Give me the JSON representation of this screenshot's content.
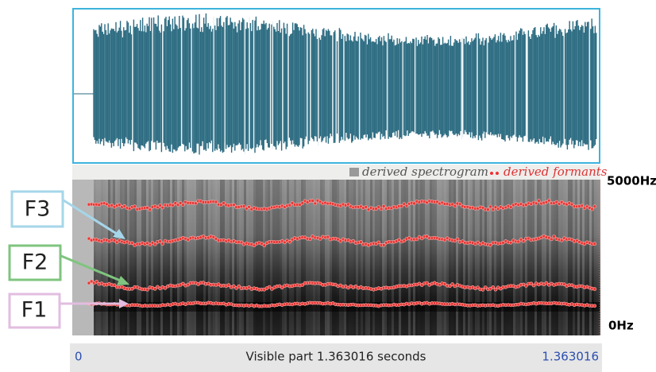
{
  "spectrogram_legend": {
    "spectrogram": "derived spectrogram",
    "formants": "derived formants"
  },
  "frequency_axis": {
    "top": "5000Hz",
    "bottom": "0Hz"
  },
  "formant_labels": [
    "F3",
    "F2",
    "F1"
  ],
  "time_bar": {
    "start": "0",
    "caption": "Visible part 1.363016 seconds",
    "end": "1.363016"
  }
}
